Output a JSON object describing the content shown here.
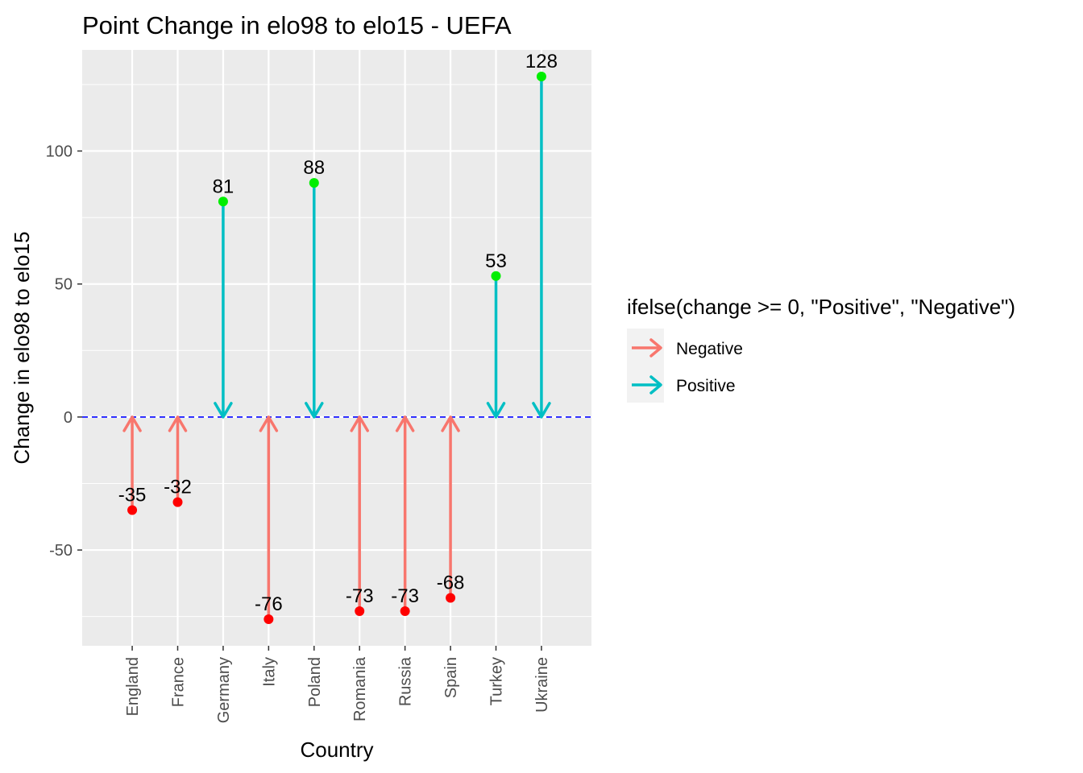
{
  "chart_data": {
    "type": "arrow",
    "title": "Point Change in elo98 to elo15 - UEFA",
    "xlabel": "Country",
    "ylabel": "Change in elo98 to elo15",
    "categories": [
      "England",
      "France",
      "Germany",
      "Italy",
      "Poland",
      "Romania",
      "Russia",
      "Spain",
      "Turkey",
      "Ukraine"
    ],
    "values": [
      -35,
      -32,
      81,
      -76,
      88,
      -73,
      -73,
      -68,
      53,
      128
    ],
    "ylim": [
      -86,
      138
    ],
    "yticks": [
      -50,
      0,
      50,
      100
    ],
    "reference_line": 0,
    "grid": true,
    "legend": {
      "position": "right",
      "title": "ifelse(change >= 0, \"Positive\", \"Negative\")",
      "entries": [
        {
          "label": "Negative",
          "color": "#f8766d"
        },
        {
          "label": "Positive",
          "color": "#00bfc4"
        }
      ]
    },
    "colors": {
      "negative_arrow": "#f8766d",
      "positive_arrow": "#00bfc4",
      "negative_point": "#ff0000",
      "positive_point": "#00ee00",
      "reference_line": "#0000ff",
      "panel": "#ebebeb"
    }
  }
}
